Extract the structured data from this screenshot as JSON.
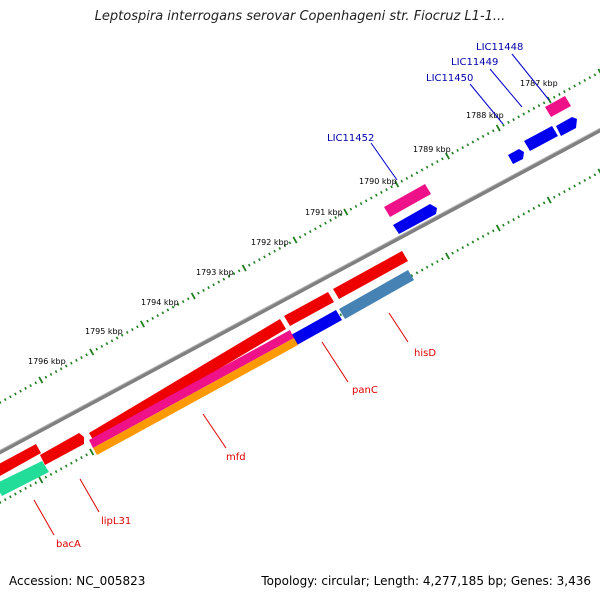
{
  "title": "Leptospira interrogans serovar Copenhageni str. Fiocruz L1-1...",
  "footer": {
    "accession": "Accession: NC_005823",
    "summary": "Topology: circular; Length: 4,277,185 bp; Genes: 3,436"
  },
  "colors": {
    "backbone": "#808080",
    "tick": "#1e7f1e",
    "gene_red": "#ee0000",
    "gene_blue": "#0000ee",
    "gene_magenta": "#ee1188",
    "gene_orange": "#ff9900",
    "gene_steelblue": "#4682b4",
    "gene_green": "#22dd99",
    "label_red": "#dd0000",
    "label_blue": "#0000aa"
  },
  "scale_labels": [
    "1787 kbp",
    "1788 kbp",
    "1789 kbp",
    "1790 kbp",
    "1791 kbp",
    "1792 kbp",
    "1793 kbp",
    "1794 kbp",
    "1795 kbp",
    "1796 kbp"
  ],
  "gene_labels": {
    "red": [
      "hisD",
      "panC",
      "mfd",
      "lipL31",
      "bacA"
    ],
    "blue": [
      "LIC11448",
      "LIC11449",
      "LIC11450",
      "LIC11452"
    ]
  }
}
